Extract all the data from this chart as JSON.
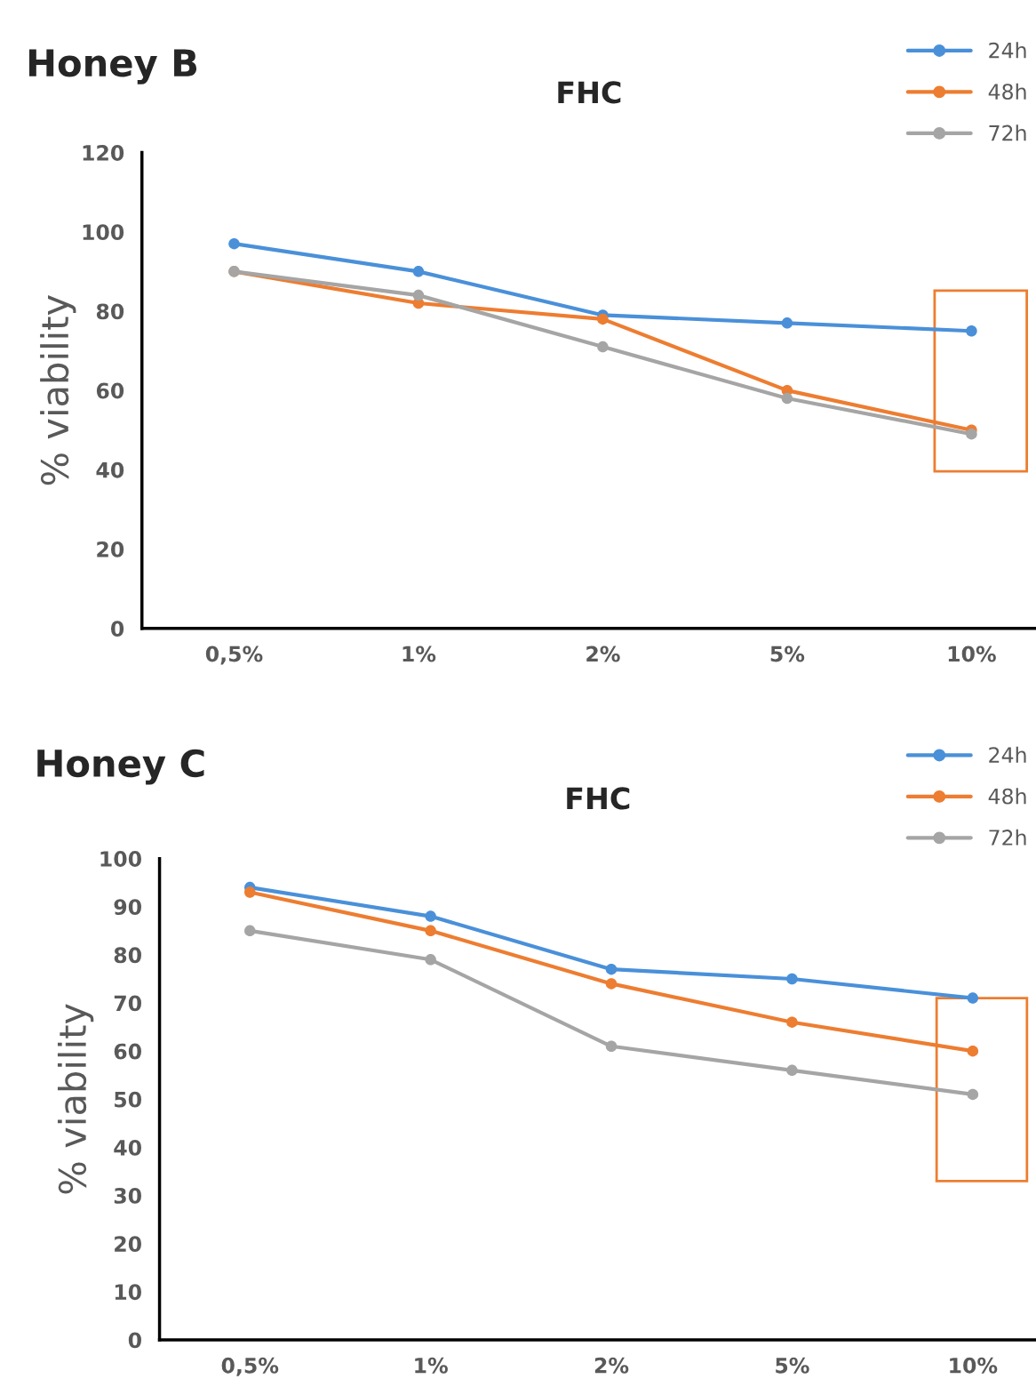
{
  "chart_data": [
    {
      "type": "line",
      "title": "FHC",
      "ylabel": "% viability",
      "annotations": [
        "Honey B"
      ],
      "categories": [
        "0,5%",
        "1%",
        "2%",
        "5%",
        "10%"
      ],
      "series": [
        {
          "name": "24h",
          "color": "#4a90d9",
          "values": [
            97,
            90,
            79,
            77,
            75
          ]
        },
        {
          "name": "48h",
          "color": "#ed7d31",
          "values": [
            90,
            82,
            78,
            60,
            50
          ]
        },
        {
          "name": "72h",
          "color": "#a5a5a5",
          "values": [
            90,
            84,
            71,
            58,
            49
          ]
        }
      ],
      "ylim": [
        0,
        120
      ],
      "yticks": [
        0,
        20,
        40,
        60,
        80,
        100,
        120
      ],
      "grid": false,
      "legend": "top right",
      "marker": "circle",
      "line_style": "solid"
    },
    {
      "type": "line",
      "title": "FHC",
      "ylabel": "% viability",
      "annotations": [
        "Honey C"
      ],
      "categories": [
        "0,5%",
        "1%",
        "2%",
        "5%",
        "10%"
      ],
      "series": [
        {
          "name": "24h",
          "color": "#4a90d9",
          "values": [
            94,
            88,
            77,
            75,
            71
          ]
        },
        {
          "name": "48h",
          "color": "#ed7d31",
          "values": [
            93,
            85,
            74,
            66,
            60
          ]
        },
        {
          "name": "72h",
          "color": "#a5a5a5",
          "values": [
            85,
            79,
            61,
            56,
            51
          ]
        }
      ],
      "ylim": [
        0,
        100
      ],
      "yticks": [
        0,
        10,
        20,
        30,
        40,
        50,
        60,
        70,
        80,
        90,
        100
      ],
      "grid": false,
      "legend": "top right",
      "marker": "circle",
      "line_style": "solid"
    }
  ]
}
